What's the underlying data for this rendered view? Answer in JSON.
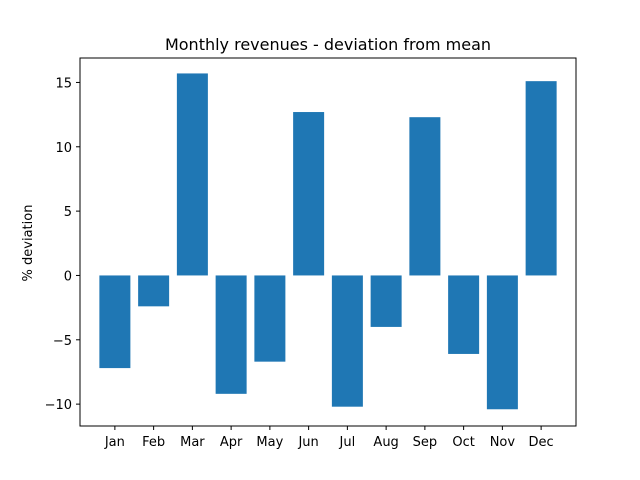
{
  "chart_data": {
    "type": "bar",
    "title": "Monthly revenues - deviation from mean",
    "xlabel": "",
    "ylabel": "% deviation",
    "categories": [
      "Jan",
      "Feb",
      "Mar",
      "Apr",
      "May",
      "Jun",
      "Jul",
      "Aug",
      "Sep",
      "Oct",
      "Nov",
      "Dec"
    ],
    "values": [
      -7.2,
      -2.4,
      15.7,
      -9.2,
      -6.7,
      12.7,
      -10.2,
      -4.0,
      12.3,
      -6.1,
      -10.4,
      15.1
    ],
    "ylim": [
      -11.7,
      16.9
    ],
    "yticks": [
      -10,
      -5,
      0,
      5,
      10,
      15
    ],
    "ytick_labels": [
      "−10",
      "−5",
      "0",
      "5",
      "10",
      "15"
    ],
    "bar_color": "#1f77b4",
    "grid": false,
    "legend": "none"
  }
}
